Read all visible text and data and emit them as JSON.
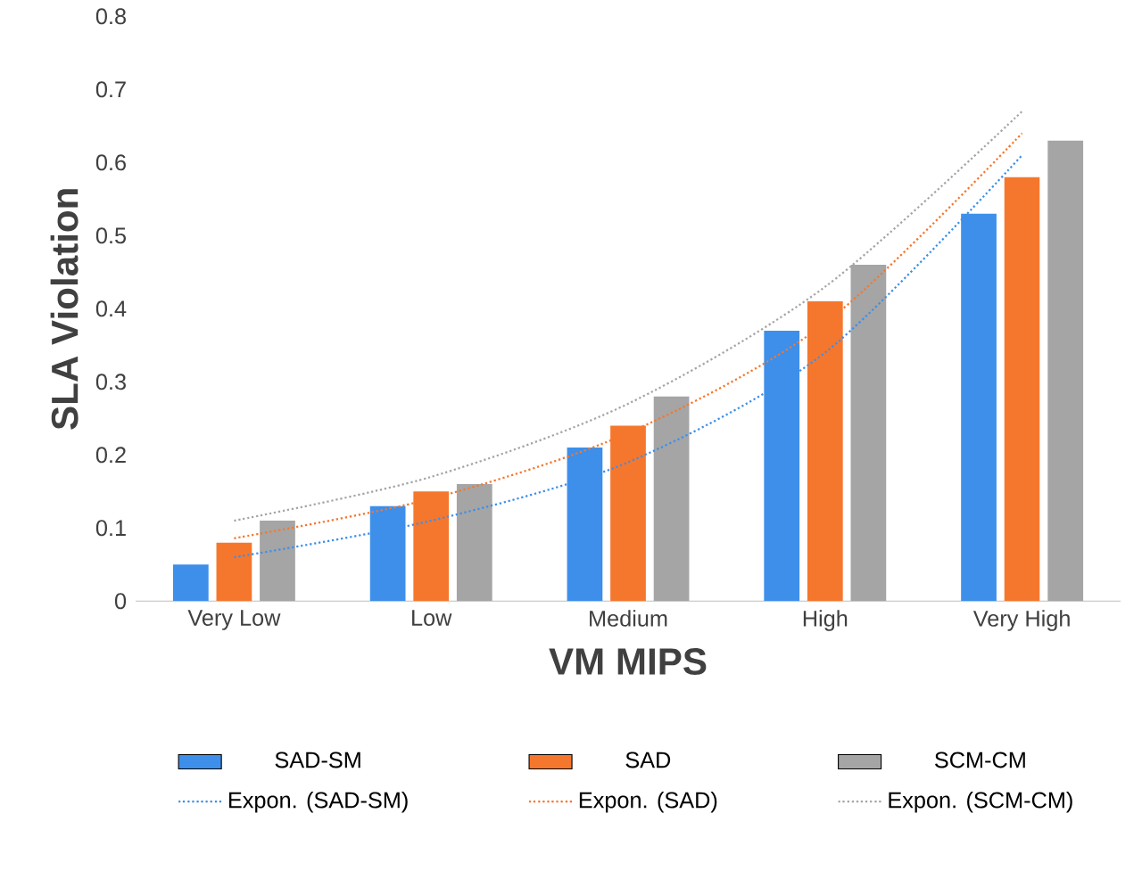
{
  "chart_data": {
    "type": "bar",
    "xlabel": "VM MIPS",
    "ylabel": "SLA Violation",
    "categories": [
      "Very Low",
      "Low",
      "Medium",
      "High",
      "Very High"
    ],
    "series": [
      {
        "name": "SAD-SM",
        "color": "#3d8fea",
        "values": [
          0.05,
          0.13,
          0.21,
          0.37,
          0.53
        ]
      },
      {
        "name": "SAD",
        "color": "#f5772d",
        "values": [
          0.08,
          0.15,
          0.24,
          0.41,
          0.58
        ]
      },
      {
        "name": "SCM-CM",
        "color": "#a5a5a5",
        "values": [
          0.11,
          0.16,
          0.28,
          0.46,
          0.63
        ]
      },
      {
        "name": "Expon. (SAD-SM)",
        "type": "line",
        "line_style": "dotted",
        "color": "#3d8fea",
        "values": [
          0.06,
          0.11,
          0.19,
          0.34,
          0.61
        ]
      },
      {
        "name": "Expon. (SAD)",
        "type": "line",
        "line_style": "dotted",
        "color": "#f5772d",
        "values": [
          0.086,
          0.14,
          0.23,
          0.38,
          0.64
        ]
      },
      {
        "name": "Expon. (SCM-CM)",
        "type": "line",
        "line_style": "dotted",
        "color": "#a5a5a5",
        "values": [
          0.11,
          0.17,
          0.27,
          0.43,
          0.67
        ]
      }
    ],
    "ylim": [
      0,
      0.8
    ],
    "yticks": [
      0,
      0.1,
      0.2,
      0.3,
      0.4,
      0.5,
      0.6,
      0.7,
      0.8
    ],
    "grid": false,
    "legend": "bottom"
  }
}
